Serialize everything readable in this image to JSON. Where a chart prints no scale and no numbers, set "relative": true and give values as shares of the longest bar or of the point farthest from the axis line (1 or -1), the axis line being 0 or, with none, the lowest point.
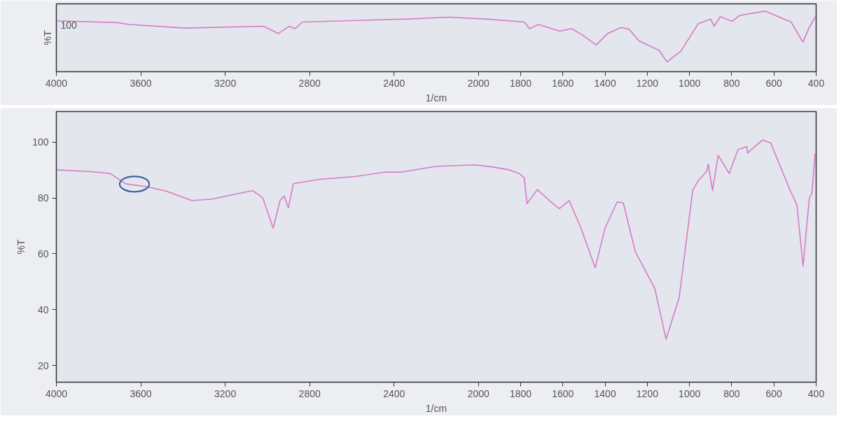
{
  "chart_data": [
    {
      "type": "line",
      "relative": true,
      "xlabel": "1/cm",
      "ylabel": "%T",
      "annotations": [
        "100"
      ],
      "xlim": [
        4000,
        400
      ],
      "xticks": [
        4000,
        3600,
        3200,
        2800,
        2400,
        2000,
        1800,
        1600,
        1400,
        1200,
        1000,
        800,
        600,
        400
      ],
      "grid": false,
      "marker": "none",
      "line_style": "solid",
      "series": [
        {
          "color": "#d77cc8",
          "x": [
            4000,
            3709,
            3655,
            3393,
            3019,
            2947,
            2898,
            2869,
            2835,
            2330,
            2141,
            1971,
            1782,
            1758,
            1717,
            1615,
            1558,
            1510,
            1442,
            1388,
            1325,
            1286,
            1240,
            1143,
            1107,
            1041,
            959,
            900,
            883,
            854,
            798,
            762,
            640,
            519,
            463,
            434,
            400
          ],
          "values": [
            0.84,
            0.81,
            0.78,
            0.72,
            0.75,
            0.63,
            0.75,
            0.71,
            0.82,
            0.87,
            0.9,
            0.87,
            0.82,
            0.71,
            0.78,
            0.67,
            0.71,
            0.61,
            0.44,
            0.63,
            0.73,
            0.7,
            0.51,
            0.35,
            0.16,
            0.34,
            0.79,
            0.87,
            0.75,
            0.91,
            0.83,
            0.93,
            1,
            0.82,
            0.49,
            0.72,
            0.93
          ]
        }
      ]
    },
    {
      "type": "line",
      "xlabel": "1/cm",
      "ylabel": "%T",
      "xlim": [
        4000,
        400
      ],
      "ylim": [
        14,
        111
      ],
      "xticks": [
        4000,
        3600,
        3200,
        2800,
        2400,
        2000,
        1800,
        1600,
        1400,
        1200,
        1000,
        800,
        600,
        400
      ],
      "yticks": [
        20,
        40,
        60,
        80,
        100
      ],
      "grid": false,
      "marker": "none",
      "line_style": "solid",
      "series": [
        {
          "color": "#d77cc8",
          "x": [
            4000,
            3841,
            3745,
            3672,
            3576,
            3480,
            3359,
            3263,
            3070,
            3022,
            2973,
            2940,
            2920,
            2901,
            2877,
            2757,
            2588,
            2439,
            2366,
            2198,
            2014,
            1931,
            1854,
            1807,
            1783,
            1770,
            1721,
            1664,
            1617,
            1570,
            1514,
            1447,
            1400,
            1343,
            1314,
            1257,
            1165,
            1111,
            1049,
            985,
            960,
            919,
            911,
            891,
            864,
            812,
            770,
            728,
            726,
            654,
            615,
            523,
            491,
            462,
            432,
            420,
            405
          ],
          "values": [
            90.1,
            89.5,
            88.8,
            85.1,
            84.1,
            82.5,
            79.1,
            79.6,
            82.7,
            80.1,
            69.2,
            79.1,
            80.7,
            76.5,
            85.1,
            86.7,
            87.7,
            89.3,
            89.3,
            91.4,
            91.9,
            91.1,
            90.1,
            88.8,
            87.2,
            78.0,
            83.0,
            79.1,
            76.2,
            79.1,
            69.2,
            55.0,
            69.2,
            78.6,
            78.3,
            60.8,
            47.7,
            29.4,
            44.3,
            82.7,
            86.1,
            89.5,
            92.2,
            82.7,
            95.3,
            88.8,
            97.4,
            98.4,
            96.1,
            100.8,
            99.7,
            82.7,
            77.5,
            55.6,
            80.1,
            81.7,
            96.1
          ]
        }
      ]
    }
  ]
}
